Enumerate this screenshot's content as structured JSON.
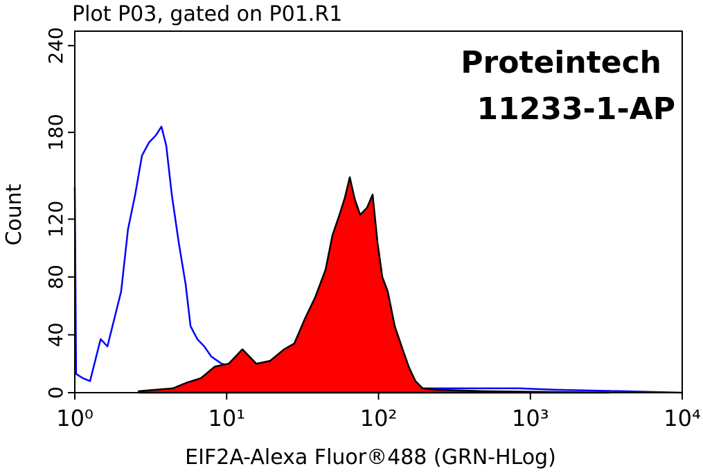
{
  "chart_data": {
    "type": "histogram-overlay",
    "title": "Plot P03, gated on P01.R1",
    "x_label": "EIF2A-Alexa Fluor®488 (GRN-HLog)",
    "y_label": "Count",
    "annotations": [
      "Proteintech",
      "11233-1-AP"
    ],
    "xscale": "log",
    "xlim": [
      1,
      10000
    ],
    "xticks": [
      {
        "value": 1,
        "label": "10⁰"
      },
      {
        "value": 10,
        "label": "10¹"
      },
      {
        "value": 100,
        "label": "10²"
      },
      {
        "value": 1000,
        "label": "10³"
      },
      {
        "value": 10000,
        "label": "10⁴"
      }
    ],
    "ylim": [
      0,
      250
    ],
    "yticks": [
      0,
      40,
      80,
      120,
      180,
      240
    ],
    "series": [
      {
        "color": "#0000ff",
        "x": [
          1,
          1.02,
          1.13,
          1.26,
          1.4,
          1.48,
          1.64,
          1.82,
          2.02,
          2.24,
          2.5,
          2.77,
          3.08,
          3.42,
          3.72,
          4.0,
          4.35,
          4.83,
          5.37,
          5.78,
          6.41,
          7.13,
          7.92,
          9.27,
          11.4,
          14.1,
          17.4,
          21.5,
          36.3,
          61.4,
          175,
          501,
          847,
          1432,
          4095,
          10000
        ],
        "values": [
          142,
          13,
          10,
          8,
          27,
          37,
          32,
          51,
          70,
          113,
          137,
          164,
          173,
          178,
          184,
          171,
          137,
          104,
          75,
          46,
          37,
          32,
          25,
          20,
          18,
          15,
          10,
          8,
          5,
          4,
          3,
          3,
          3,
          2,
          1,
          0
        ]
      },
      {
        "color": "#000000",
        "fill": "#ff0000",
        "x": [
          2.63,
          4.44,
          5.48,
          6.76,
          8.34,
          10.3,
          12.7,
          15.7,
          19.3,
          23.9,
          27.9,
          32.7,
          38.3,
          44.8,
          49.8,
          55.3,
          60.1,
          64.7,
          69.7,
          75.7,
          84.1,
          91.5,
          98.4,
          106,
          115,
          128,
          142,
          158,
          175,
          195,
          240,
          501,
          3319
        ],
        "values": [
          1,
          3,
          7,
          10,
          18,
          20,
          30,
          20,
          22,
          30,
          34,
          51,
          66,
          85,
          109,
          123,
          135,
          149,
          134,
          123,
          128,
          137,
          104,
          80,
          70,
          46,
          32,
          18,
          8,
          3,
          2,
          1,
          0
        ]
      }
    ]
  }
}
